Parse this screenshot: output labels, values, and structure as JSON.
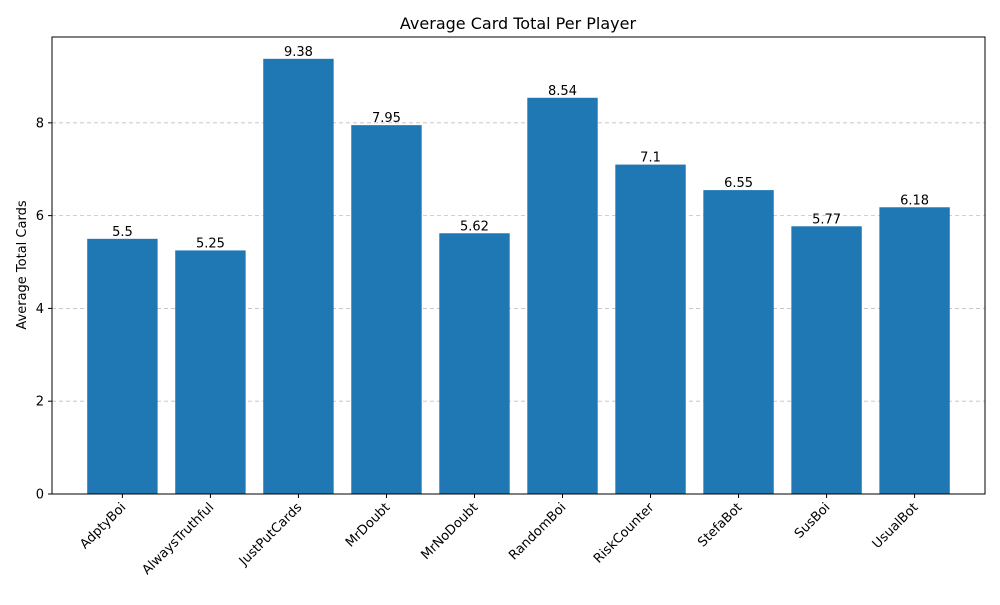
{
  "chart_data": {
    "type": "bar",
    "title": "Average Card Total Per Player",
    "xlabel": "",
    "ylabel": "Average Total Cards",
    "categories": [
      "AdptyBoi",
      "AlwaysTruthful",
      "JustPutCards",
      "MrDoubt",
      "MrNoDoubt",
      "RandomBoi",
      "RiskCounter",
      "StefaBot",
      "SusBoi",
      "UsualBot"
    ],
    "values": [
      5.5,
      5.25,
      9.38,
      7.95,
      5.62,
      8.54,
      7.1,
      6.55,
      5.77,
      6.18
    ],
    "value_labels": [
      "5.5",
      "5.25",
      "9.38",
      "7.95",
      "5.62",
      "8.54",
      "7.1",
      "6.55",
      "5.77",
      "6.18"
    ],
    "ylim": [
      0,
      9.85
    ],
    "yticks": [
      0,
      2,
      4,
      6,
      8
    ],
    "ytick_labels": [
      "0",
      "2",
      "4",
      "6",
      "8"
    ],
    "grid": "y-dashed",
    "bar_color": "#1f77b4",
    "grid_color": "#c0c0c0"
  }
}
